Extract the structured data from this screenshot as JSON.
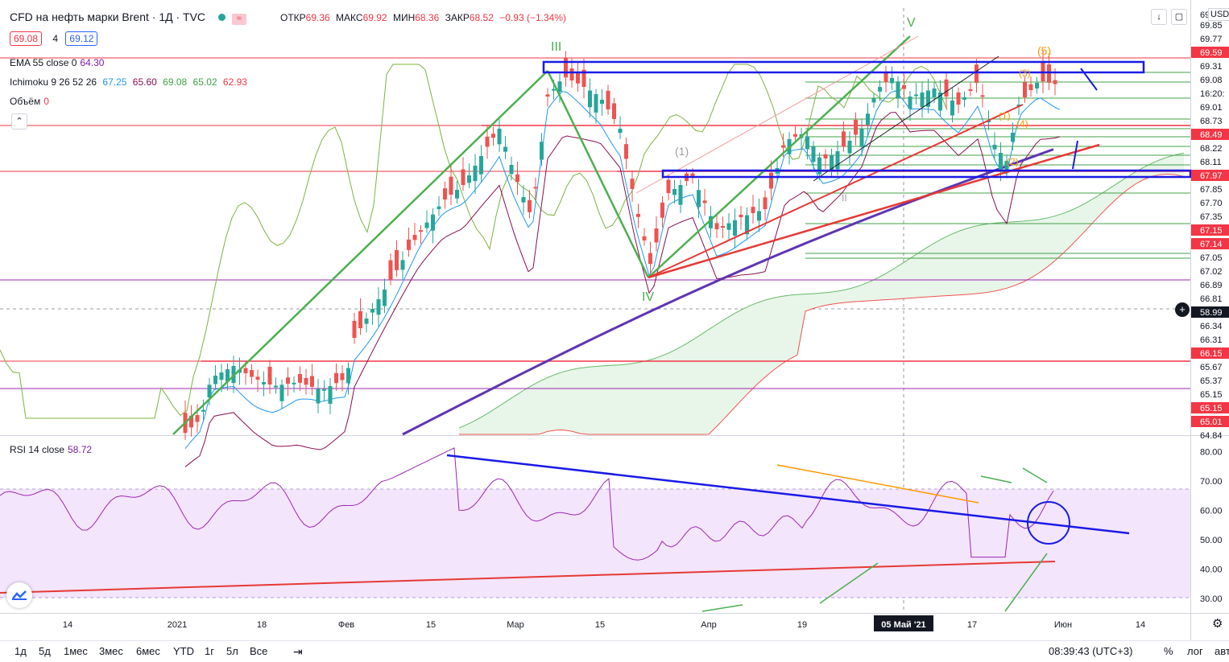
{
  "header": {
    "title": "CFD на нефть марки Brent · 1Д · TVC",
    "ohlc": {
      "open_label": "ОТКР",
      "open": "69.36",
      "high_label": "МАКС",
      "high": "69.92",
      "low_label": "МИН",
      "low": "68.36",
      "close_label": "ЗАКР",
      "close": "68.52",
      "change": "−0.93 (−1.34%)"
    },
    "bid": "69.08",
    "spread": "4",
    "ask": "69.12"
  },
  "indicators": {
    "ema": {
      "label": "EMA 55 close 0",
      "value": "64.30"
    },
    "ichimoku": {
      "label": "Ichimoku 9 26 52 26",
      "values": [
        "67.25",
        "65.60",
        "69.08",
        "65.02",
        "62.93"
      ]
    },
    "volume": {
      "label": "Объём",
      "value": "0"
    },
    "rsi": {
      "label": "RSI 14 close",
      "value": "58.72"
    }
  },
  "price_axis": {
    "currency": "USD",
    "top_label": "69",
    "labels": [
      {
        "v": "69.85",
        "c": "#131722"
      },
      {
        "v": "69.77",
        "c": "#131722"
      },
      {
        "v": "69.59",
        "c": "#f23645"
      },
      {
        "v": "69.31",
        "c": "#131722"
      },
      {
        "v": "69.08",
        "c": "#131722"
      },
      {
        "v": "16:20:",
        "c": "#131722"
      },
      {
        "v": "69.01",
        "c": "#131722"
      },
      {
        "v": "68.73",
        "c": "#131722"
      },
      {
        "v": "68.49",
        "c": "#f23645"
      },
      {
        "v": "68.22",
        "c": "#131722"
      },
      {
        "v": "68.11",
        "c": "#131722"
      },
      {
        "v": "67.97",
        "c": "#f23645"
      },
      {
        "v": "67.85",
        "c": "#131722"
      },
      {
        "v": "67.70",
        "c": "#131722"
      },
      {
        "v": "67.35",
        "c": "#131722"
      },
      {
        "v": "67.15",
        "c": "#f23645"
      },
      {
        "v": "67.14",
        "c": "#f23645"
      },
      {
        "v": "67.05",
        "c": "#131722"
      },
      {
        "v": "67.02",
        "c": "#131722"
      },
      {
        "v": "66.89",
        "c": "#131722"
      },
      {
        "v": "66.81",
        "c": "#131722"
      },
      {
        "v": "58.99",
        "c": "#131722"
      },
      {
        "v": "66.34",
        "c": "#131722"
      },
      {
        "v": "66.31",
        "c": "#131722"
      },
      {
        "v": "66.15",
        "c": "#f23645"
      },
      {
        "v": "65.67",
        "c": "#131722"
      },
      {
        "v": "65.37",
        "c": "#131722"
      },
      {
        "v": "65.15",
        "c": "#131722"
      },
      {
        "v": "65.15",
        "c": "#f23645"
      },
      {
        "v": "65.01",
        "c": "#f23645"
      },
      {
        "v": "64.84",
        "c": "#131722"
      }
    ]
  },
  "rsi_axis": [
    "80.00",
    "70.00",
    "60.00",
    "50.00",
    "40.00",
    "30.00"
  ],
  "time_axis": [
    "14",
    "2021",
    "18",
    "Фев",
    "15",
    "Мар",
    "15",
    "Апр",
    "19",
    "05 Май '21",
    "17",
    "Июн",
    "14"
  ],
  "wave_labels": {
    "III": "III",
    "IV": "IV",
    "V": "V",
    "five": "(5)",
    "one": "(1)",
    "i_marks": [
      "(1)",
      "(2)",
      "(4)",
      "(3)",
      "II"
    ]
  },
  "bottom_bar": {
    "ranges": [
      "1д",
      "5д",
      "1мес",
      "3мес",
      "6мес",
      "YTD",
      "1г",
      "5л",
      "Все"
    ],
    "clock": "08:39:43 (UTC+3)",
    "percent": "%",
    "log": "лог",
    "auto": "авто"
  },
  "chart_data": [
    {
      "type": "candlestick",
      "title": "CFD на нефть марки Brent · 1Д · TVC",
      "ylim": [
        64.84,
        69.9
      ],
      "legend": "top-left",
      "grid": false,
      "x": [
        "14",
        "2021",
        "18",
        "Фев",
        "15",
        "Мар",
        "15",
        "Апр",
        "19",
        "05 Май '21",
        "17",
        "Июн",
        "14"
      ],
      "last_close": 68.52,
      "horizontal_levels_red": [
        69.59,
        68.49,
        67.97,
        67.15,
        67.14,
        66.15,
        65.15,
        65.01
      ],
      "horizontal_levels_green": [
        69.31,
        69.08,
        69.01,
        68.73,
        68.22,
        68.11,
        67.85,
        67.7,
        67.35,
        67.05,
        67.02
      ]
    },
    {
      "type": "line",
      "title": "RSI 14 close",
      "ylim": [
        25,
        85
      ],
      "bands": [
        30,
        70
      ],
      "last": 58.72
    }
  ]
}
